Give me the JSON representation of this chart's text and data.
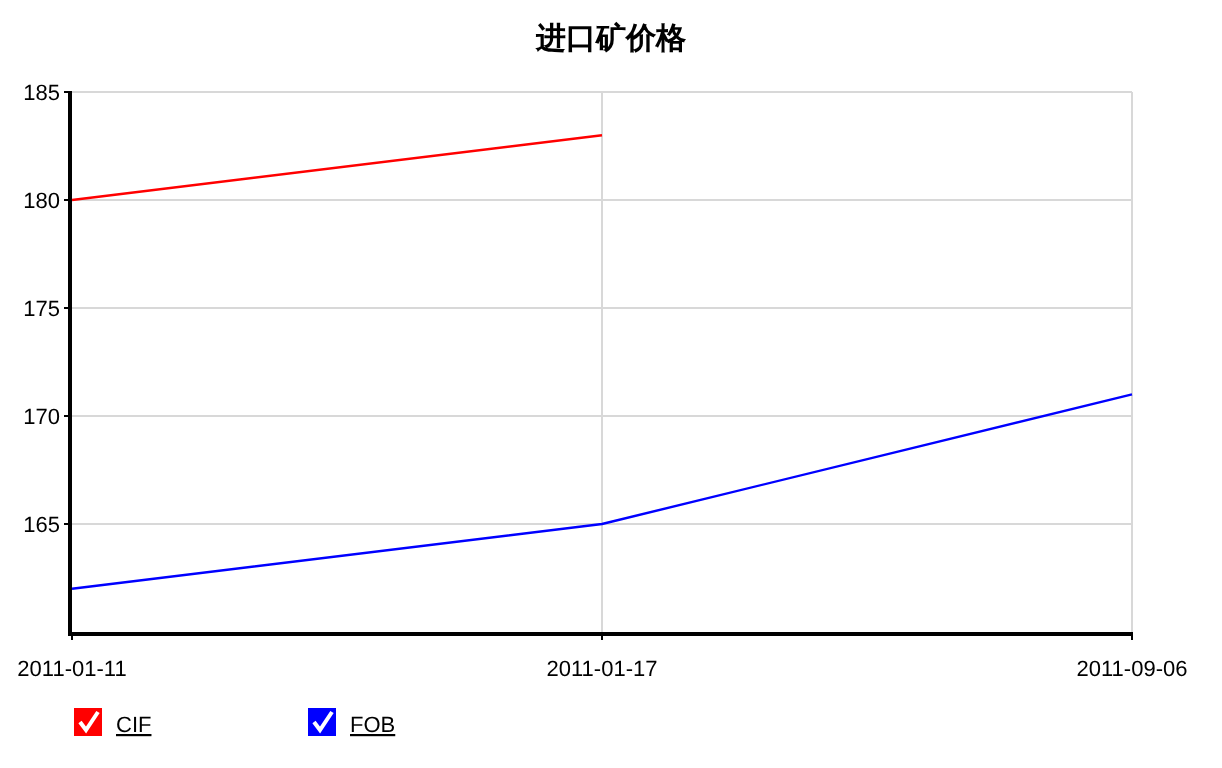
{
  "chart_data": {
    "type": "line",
    "title": "进口矿价格",
    "categories": [
      "2011-01-11",
      "2011-01-17",
      "2011-09-06"
    ],
    "series": [
      {
        "name": "CIF",
        "color": "#ff0000",
        "values": [
          180,
          183,
          null
        ]
      },
      {
        "name": "FOB",
        "color": "#0000ff",
        "values": [
          162,
          165,
          171
        ]
      }
    ],
    "ylim": [
      160,
      185
    ],
    "yticks": [
      165,
      170,
      175,
      180,
      185
    ],
    "grid": true,
    "legend": "bottom left",
    "marker": "none",
    "line_style": "solid"
  }
}
